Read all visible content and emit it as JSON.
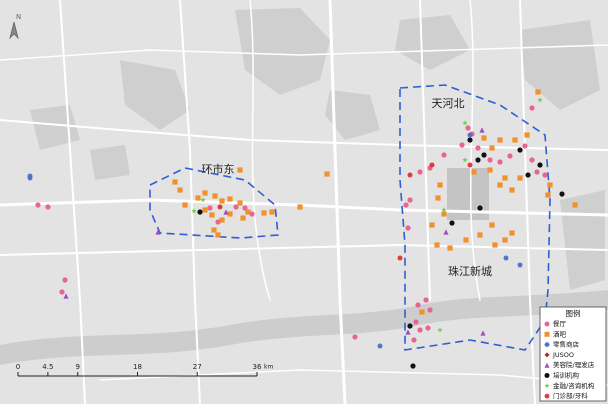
{
  "map": {
    "north": "N",
    "areas": [
      "环市东",
      "天河北",
      "珠江新城"
    ],
    "legend": {
      "title": "图例",
      "items": [
        {
          "name": "餐厅",
          "color": "#e8658f"
        },
        {
          "name": "酒吧",
          "color": "#f0922b"
        },
        {
          "name": "零售商店",
          "color": "#4a6fc9"
        },
        {
          "name": "JUSOO",
          "color": "#b02a2a"
        },
        {
          "name": "美容院/理发店",
          "color": "#9b4fc0"
        },
        {
          "name": "培训机构",
          "color": "#111111"
        },
        {
          "name": "金融/咨询机构",
          "color": "#6ecf4b"
        },
        {
          "name": "门诊部/牙科",
          "color": "#e0312e"
        }
      ]
    },
    "scale": {
      "ticks": [
        0,
        4.5,
        9,
        18,
        27,
        36
      ],
      "unit": "km"
    }
  }
}
